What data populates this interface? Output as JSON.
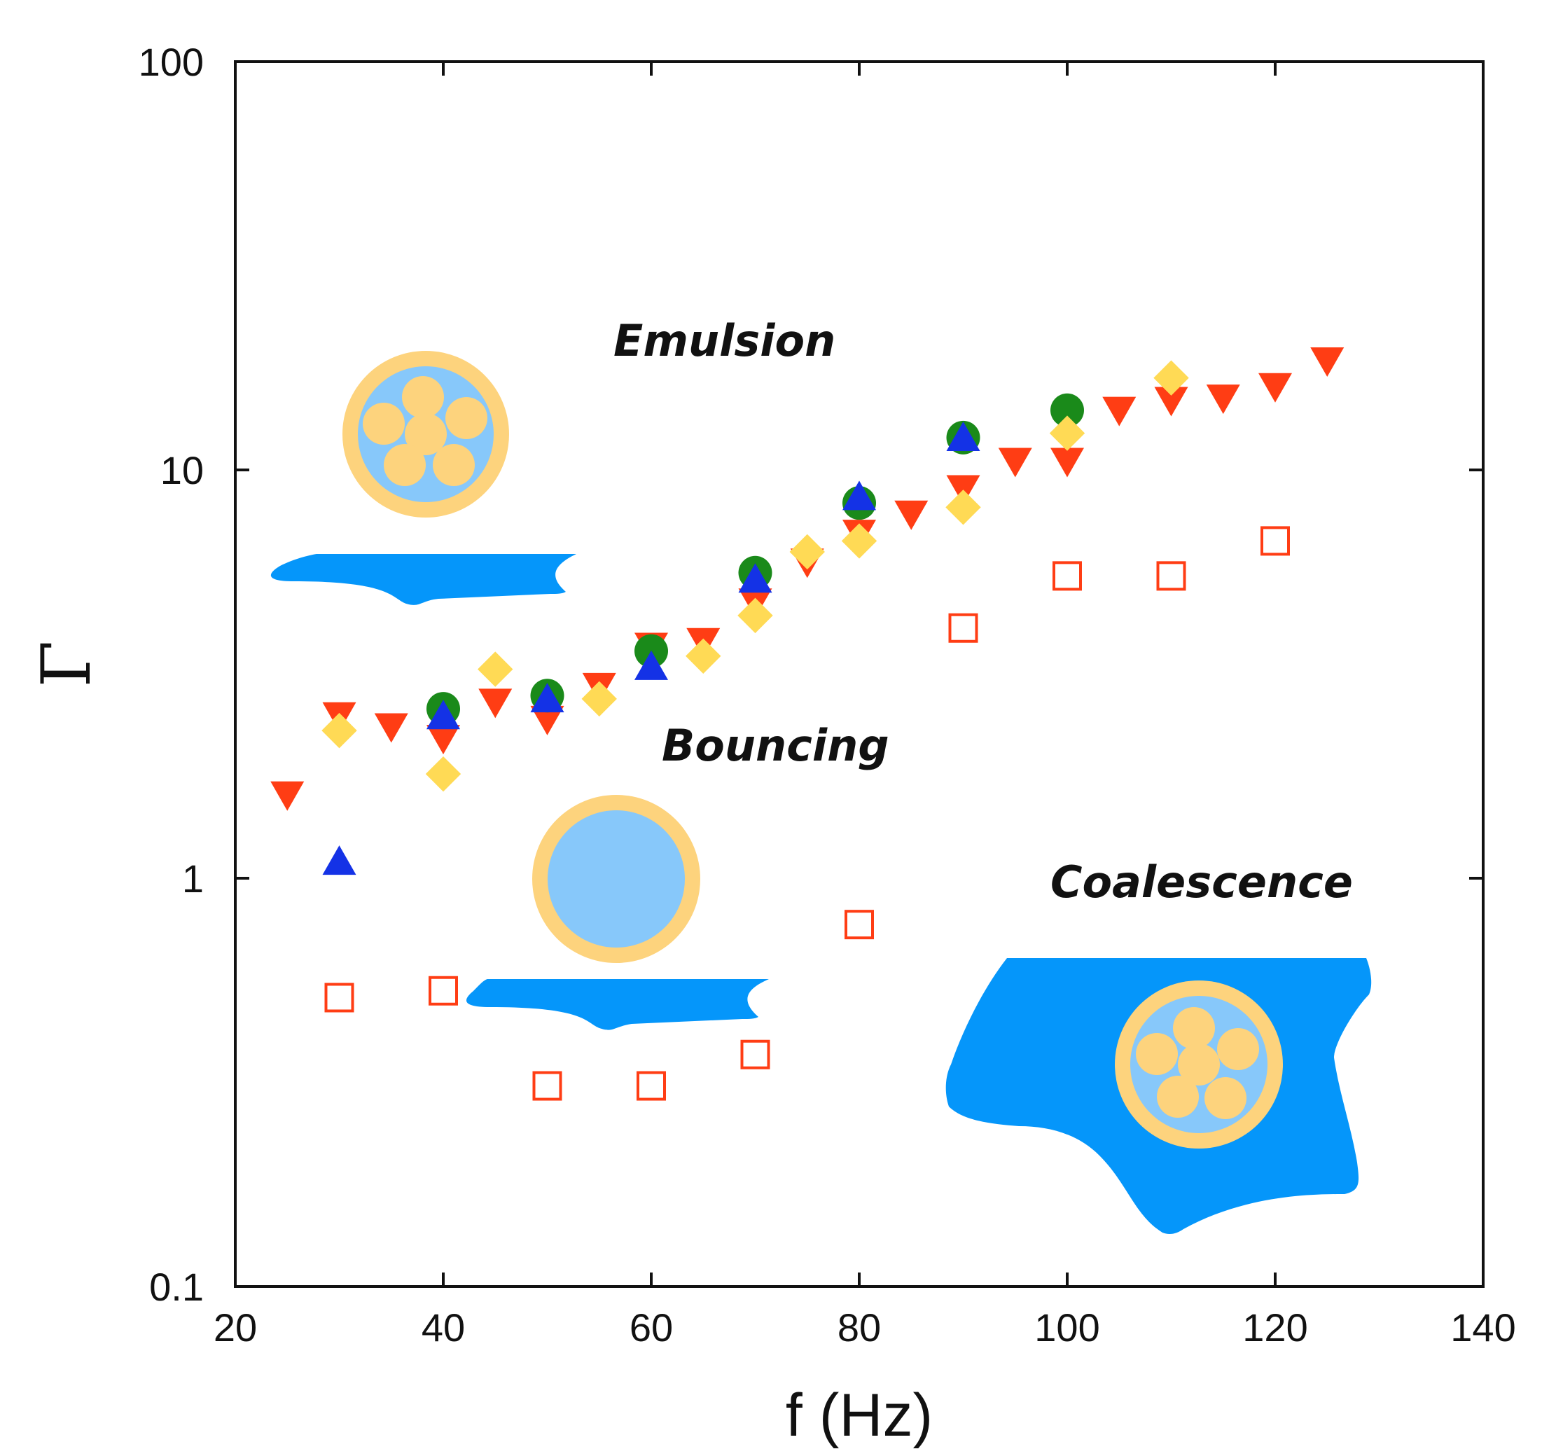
{
  "chart_data": {
    "type": "scatter",
    "title": "",
    "xlabel": "f (Hz)",
    "ylabel": "Γ",
    "xlim": [
      20,
      140
    ],
    "ylim": [
      0.1,
      100
    ],
    "yscale": "log",
    "xticks": [
      20,
      40,
      60,
      80,
      100,
      120,
      140
    ],
    "xtick_labels": [
      "20",
      "40",
      "60",
      "80",
      "100",
      "120",
      "140"
    ],
    "yticks": [
      0.1,
      1,
      10,
      100
    ],
    "ytick_labels": [
      "0.1",
      "1",
      "10",
      "100"
    ],
    "grid": false,
    "legend": "none",
    "region_labels": [
      "Emulsion",
      "Bouncing",
      "Coalescence"
    ],
    "series": [
      {
        "marker": "triangle-down",
        "color": "#FF3D14",
        "filled": true,
        "points": [
          [
            25,
            1.6
          ],
          [
            30,
            2.5
          ],
          [
            35,
            2.35
          ],
          [
            40,
            2.2
          ],
          [
            45,
            2.7
          ],
          [
            50,
            2.45
          ],
          [
            55,
            2.95
          ],
          [
            60,
            3.7
          ],
          [
            65,
            3.8
          ],
          [
            70,
            4.75
          ],
          [
            75,
            5.95
          ],
          [
            80,
            7.0
          ],
          [
            85,
            7.8
          ],
          [
            90,
            9.0
          ],
          [
            95,
            10.5
          ],
          [
            100,
            10.5
          ],
          [
            105,
            14.0
          ],
          [
            110,
            14.8
          ],
          [
            115,
            15.0
          ],
          [
            120,
            16.0
          ],
          [
            125,
            18.5
          ]
        ]
      },
      {
        "marker": "circle",
        "color": "#1A8A1A",
        "filled": true,
        "points": [
          [
            40,
            2.6
          ],
          [
            50,
            2.8
          ],
          [
            60,
            3.6
          ],
          [
            70,
            5.6
          ],
          [
            80,
            8.3
          ],
          [
            90,
            12.0
          ],
          [
            100,
            14.0
          ]
        ]
      },
      {
        "marker": "triangle-up",
        "color": "#1432E6",
        "filled": true,
        "points": [
          [
            30,
            1.1
          ],
          [
            40,
            2.5
          ],
          [
            50,
            2.75
          ],
          [
            60,
            3.3
          ],
          [
            70,
            5.4
          ],
          [
            80,
            8.6
          ],
          [
            90,
            12.0
          ]
        ]
      },
      {
        "marker": "diamond",
        "color": "#FFDA55",
        "filled": true,
        "points": [
          [
            30,
            2.3
          ],
          [
            40,
            1.8
          ],
          [
            45,
            3.25
          ],
          [
            55,
            2.75
          ],
          [
            65,
            3.5
          ],
          [
            70,
            4.4
          ],
          [
            75,
            6.3
          ],
          [
            80,
            6.7
          ],
          [
            90,
            8.1
          ],
          [
            100,
            12.3
          ],
          [
            110,
            16.8
          ]
        ]
      },
      {
        "marker": "square",
        "color": "#FF3D14",
        "filled": false,
        "points": [
          [
            30,
            0.51
          ],
          [
            40,
            0.53
          ],
          [
            50,
            0.31
          ],
          [
            60,
            0.31
          ],
          [
            70,
            0.37
          ],
          [
            80,
            0.77
          ],
          [
            90,
            4.1
          ],
          [
            100,
            5.5
          ],
          [
            110,
            5.5
          ],
          [
            120,
            6.7
          ]
        ]
      }
    ]
  },
  "colors": {
    "bath_blue": "#0596FA",
    "droplet_light_blue": "#87C8FA",
    "droplet_shell": "#FDD37D"
  },
  "illustrations": {
    "emulsion": "drop-with-inner-droplets-above-bath",
    "bouncing": "drop-bouncing-on-bath",
    "coalescence": "drop-coalescing-into-bath"
  }
}
